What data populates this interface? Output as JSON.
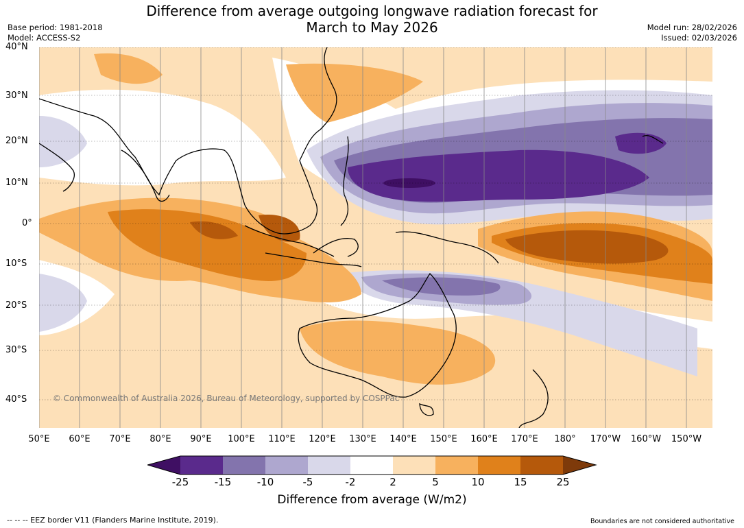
{
  "title": {
    "line1": "Difference from average outgoing longwave radiation forecast for",
    "line2": "March to May 2026"
  },
  "meta_left": {
    "base_period": "Base period: 1981-2018",
    "model": "Model: ACCESS-S2"
  },
  "meta_right": {
    "model_run": "Model run: 28/02/2026",
    "issued": "Issued: 02/03/2026"
  },
  "map": {
    "copyright": "© Commonwealth of Australia 2026, Bureau of Meteorology, supported by COSPPac",
    "lat_labels": [
      "40°N",
      "30°N",
      "20°N",
      "10°N",
      "0°",
      "10°S",
      "20°S",
      "30°S",
      "40°S"
    ],
    "lon_labels": [
      "50°E",
      "60°E",
      "70°E",
      "80°E",
      "90°E",
      "100°E",
      "110°E",
      "120°E",
      "130°E",
      "140°E",
      "150°E",
      "160°E",
      "170°E",
      "180°",
      "170°W",
      "160°W",
      "150°W"
    ]
  },
  "legend": {
    "ticks": [
      "-25",
      "-15",
      "-10",
      "-5",
      "-2",
      "2",
      "5",
      "10",
      "15",
      "25"
    ],
    "label": "Difference from average (W/m2)",
    "colors": [
      "#3f0f63",
      "#5a2a8c",
      "#8374ad",
      "#aea7cf",
      "#d9d8ea",
      "#ffffff",
      "#fde0b8",
      "#f7b15e",
      "#e0811b",
      "#b5590b",
      "#7e3a0a"
    ]
  },
  "footer": {
    "left": "--  --  -- EEZ border V11 (Flanders Marine Institute, 2019).",
    "right": "Boundaries are not considered authoritative"
  }
}
